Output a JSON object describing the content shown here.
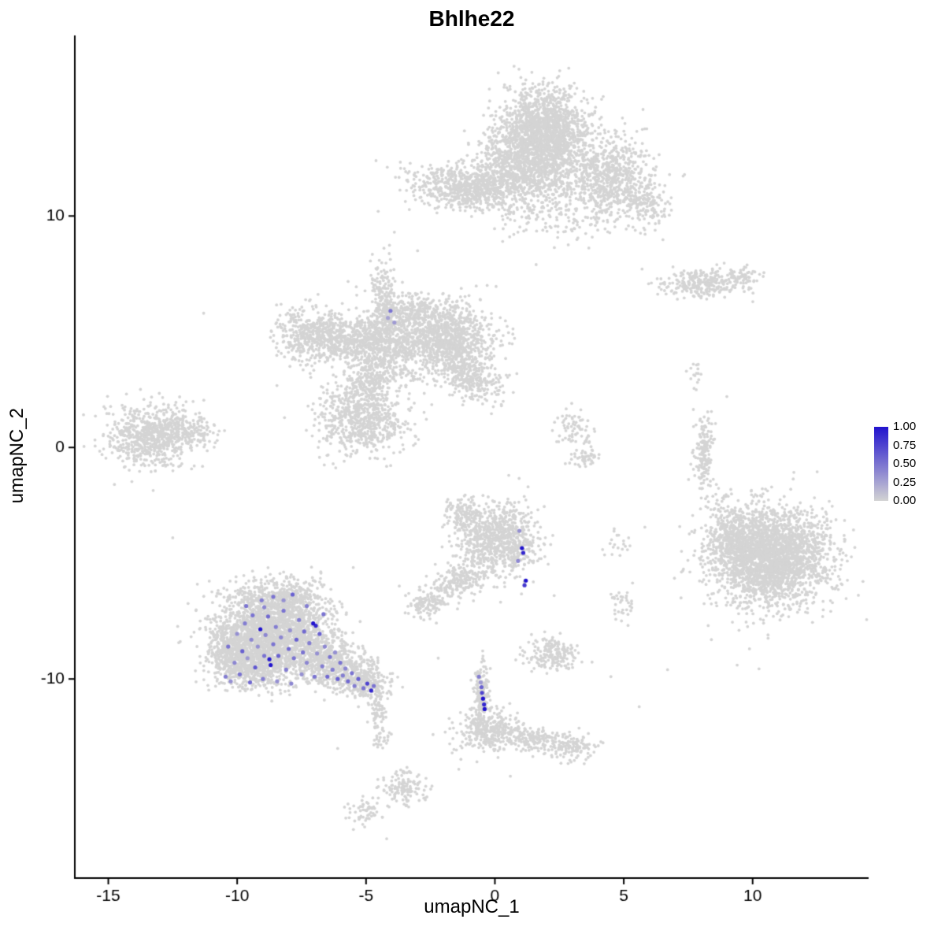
{
  "chart_data": {
    "type": "scatter",
    "title": "Bhlhe22",
    "xlabel": "umapNC_1",
    "ylabel": "umapNC_2",
    "xlim": [
      -16.3,
      14.5
    ],
    "ylim": [
      -18.6,
      17.8
    ],
    "x_ticks": [
      -15,
      -10,
      -5,
      0,
      5,
      10
    ],
    "y_ticks": [
      10,
      0,
      -10
    ],
    "grid": false,
    "legend": {
      "position": "right",
      "labels": [
        "1.00",
        "0.75",
        "0.50",
        "0.25",
        "0.00"
      ],
      "scale_low": "#D3D3D3",
      "scale_high": "#2113CE"
    },
    "colors": {
      "background_points": "#D4D4D4",
      "axis": "#000000",
      "text": "#000000"
    },
    "background_clusters_format": "[center_x, center_y, sd_x, sd_y, rotation_deg, n_points]",
    "background_clusters": [
      [
        1.9,
        13.5,
        0.85,
        1.0,
        0,
        1800
      ],
      [
        1.3,
        11.6,
        1.1,
        0.6,
        0,
        500
      ],
      [
        0.2,
        12.4,
        0.6,
        0.8,
        0,
        260
      ],
      [
        -1.2,
        11.2,
        1.05,
        0.45,
        -8,
        650
      ],
      [
        4.6,
        11.6,
        0.8,
        0.9,
        0,
        700
      ],
      [
        5.9,
        10.4,
        0.4,
        0.4,
        0,
        110
      ],
      [
        2.2,
        9.9,
        1.2,
        0.5,
        0,
        120
      ],
      [
        8.2,
        7.1,
        0.85,
        0.32,
        4,
        280
      ],
      [
        9.6,
        7.5,
        0.3,
        0.2,
        0,
        40
      ],
      [
        -7.0,
        4.9,
        0.75,
        0.6,
        10,
        480
      ],
      [
        -5.5,
        4.5,
        0.7,
        0.5,
        0,
        310
      ],
      [
        -4.2,
        4.6,
        0.7,
        0.85,
        0,
        580
      ],
      [
        -4.3,
        6.4,
        0.25,
        0.85,
        0,
        190
      ],
      [
        -3.3,
        5.9,
        0.5,
        0.4,
        0,
        150
      ],
      [
        -1.9,
        4.7,
        0.95,
        0.8,
        0,
        1100
      ],
      [
        -0.9,
        2.9,
        0.6,
        0.38,
        -35,
        250
      ],
      [
        -5.2,
        1.2,
        0.85,
        0.7,
        0,
        680
      ],
      [
        -4.8,
        2.9,
        0.5,
        0.5,
        0,
        210
      ],
      [
        -13.3,
        0.55,
        0.85,
        0.65,
        0,
        750
      ],
      [
        -11.8,
        0.7,
        0.45,
        0.3,
        0,
        90
      ],
      [
        3.1,
        0.9,
        0.35,
        0.55,
        0,
        70
      ],
      [
        3.45,
        -0.4,
        0.3,
        0.25,
        0,
        50
      ],
      [
        8.1,
        -0.2,
        0.2,
        0.8,
        0,
        160
      ],
      [
        7.8,
        3.2,
        0.15,
        0.3,
        0,
        15
      ],
      [
        10.7,
        -4.7,
        1.15,
        1.05,
        0,
        2600
      ],
      [
        9.3,
        -3.9,
        0.5,
        0.6,
        0,
        280
      ],
      [
        8.8,
        -2.5,
        0.25,
        0.4,
        0,
        30
      ],
      [
        0.2,
        -4.0,
        0.78,
        0.8,
        0,
        820
      ],
      [
        -1.5,
        -5.8,
        0.6,
        0.35,
        25,
        200
      ],
      [
        -2.7,
        -6.8,
        0.35,
        0.3,
        0,
        110
      ],
      [
        -1.2,
        -2.9,
        0.4,
        0.4,
        0,
        130
      ],
      [
        -8.6,
        -8.0,
        1.1,
        0.9,
        0,
        2200
      ],
      [
        -9.4,
        -9.3,
        0.7,
        0.55,
        0,
        560
      ],
      [
        -6.2,
        -9.4,
        0.85,
        0.5,
        -18,
        600
      ],
      [
        -5.0,
        -10.2,
        0.45,
        0.3,
        -15,
        190
      ],
      [
        -8.3,
        -6.5,
        0.9,
        0.4,
        0,
        320
      ],
      [
        -10.3,
        -8.7,
        0.4,
        0.65,
        0,
        220
      ],
      [
        -4.55,
        -11.5,
        0.15,
        0.55,
        0,
        70
      ],
      [
        -4.4,
        -12.6,
        0.15,
        0.3,
        0,
        25
      ],
      [
        -3.6,
        -14.7,
        0.45,
        0.4,
        0,
        130
      ],
      [
        -5.0,
        -15.7,
        0.35,
        0.3,
        0,
        60
      ],
      [
        -0.5,
        -10.6,
        0.16,
        0.75,
        0,
        160
      ],
      [
        -0.3,
        -12.2,
        0.55,
        0.45,
        0,
        300
      ],
      [
        1.4,
        -12.6,
        0.9,
        0.3,
        -10,
        240
      ],
      [
        3.0,
        -12.95,
        0.4,
        0.28,
        0,
        90
      ],
      [
        2.2,
        -8.9,
        0.45,
        0.35,
        0,
        190
      ],
      [
        5.0,
        -6.7,
        0.25,
        0.5,
        0,
        35
      ],
      [
        4.7,
        -4.1,
        0.3,
        0.3,
        0,
        20
      ]
    ],
    "background_singles": [
      [
        -11.3,
        5.8
      ],
      [
        -3.9,
        9.3
      ],
      [
        -3.0,
        8.5
      ],
      [
        0.3,
        8.9
      ],
      [
        1.6,
        7.9
      ],
      [
        -0.3,
        7.0
      ],
      [
        7.7,
        3.6
      ],
      [
        8.4,
        -8.3
      ],
      [
        4.5,
        -9.9
      ],
      [
        5.6,
        -11.2
      ],
      [
        6.7,
        -9.6
      ],
      [
        2.3,
        -6.4
      ],
      [
        -2.2,
        -9.1
      ],
      [
        -1.4,
        -13.9
      ],
      [
        0.6,
        -14.2
      ],
      [
        -6.1,
        -13.0
      ],
      [
        -2.4,
        -12.4
      ],
      [
        -12.5,
        -3.9
      ],
      [
        9.0,
        2.2
      ],
      [
        9.4,
        -9.4
      ],
      [
        -4.2,
        -16.9
      ]
    ],
    "expression_points_format": "[x, y, expression_0_to_1]",
    "expression_points": [
      [
        -10.35,
        -8.6,
        0.5
      ],
      [
        -10.1,
        -9.3,
        0.4
      ],
      [
        -10.0,
        -8.05,
        0.35
      ],
      [
        -9.9,
        -9.8,
        0.5
      ],
      [
        -9.8,
        -8.8,
        0.6
      ],
      [
        -9.7,
        -7.6,
        0.45
      ],
      [
        -9.6,
        -9.1,
        0.3
      ],
      [
        -9.5,
        -10.15,
        0.55
      ],
      [
        -9.45,
        -8.3,
        0.4
      ],
      [
        -9.4,
        -7.25,
        0.5
      ],
      [
        -9.3,
        -9.5,
        0.65
      ],
      [
        -9.2,
        -8.6,
        0.35
      ],
      [
        -9.1,
        -7.85,
        1.0
      ],
      [
        -9.0,
        -10.0,
        0.45
      ],
      [
        -8.95,
        -9.0,
        0.5
      ],
      [
        -8.9,
        -8.1,
        0.4
      ],
      [
        -8.8,
        -7.3,
        0.55
      ],
      [
        -8.7,
        -9.4,
        1.0
      ],
      [
        -8.6,
        -8.5,
        0.5
      ],
      [
        -8.5,
        -7.75,
        0.45
      ],
      [
        -8.45,
        -10.1,
        0.35
      ],
      [
        -8.4,
        -9.0,
        0.6
      ],
      [
        -8.3,
        -8.2,
        0.4
      ],
      [
        -8.2,
        -7.05,
        0.5
      ],
      [
        -8.1,
        -9.6,
        0.45
      ],
      [
        -8.0,
        -8.7,
        0.55
      ],
      [
        -7.95,
        -7.9,
        0.35
      ],
      [
        -7.9,
        -10.2,
        0.4
      ],
      [
        -7.8,
        -9.1,
        0.5
      ],
      [
        -7.7,
        -8.3,
        0.6
      ],
      [
        -7.6,
        -7.45,
        0.45
      ],
      [
        -7.5,
        -9.8,
        0.35
      ],
      [
        -7.45,
        -8.85,
        0.5
      ],
      [
        -7.4,
        -7.95,
        0.55
      ],
      [
        -7.3,
        -9.3,
        0.4
      ],
      [
        -7.2,
        -8.45,
        0.45
      ],
      [
        -7.05,
        -7.6,
        1.0
      ],
      [
        -7.0,
        -9.9,
        0.5
      ],
      [
        -6.9,
        -8.9,
        0.35
      ],
      [
        -6.8,
        -8.05,
        0.6
      ],
      [
        -6.7,
        -9.45,
        0.45
      ],
      [
        -6.6,
        -8.6,
        0.4
      ],
      [
        -6.5,
        -9.9,
        0.55
      ],
      [
        -6.4,
        -9.05,
        0.5
      ],
      [
        -6.3,
        -9.6,
        0.45
      ],
      [
        -6.2,
        -8.85,
        0.35
      ],
      [
        -6.1,
        -10.0,
        0.6
      ],
      [
        -6.0,
        -9.3,
        0.5
      ],
      [
        -5.9,
        -9.85,
        0.45
      ],
      [
        -5.8,
        -9.55,
        0.4
      ],
      [
        -5.7,
        -10.1,
        0.55
      ],
      [
        -5.55,
        -9.75,
        0.5
      ],
      [
        -5.45,
        -10.3,
        0.45
      ],
      [
        -5.3,
        -10.0,
        0.6
      ],
      [
        -5.1,
        -10.4,
        0.5
      ],
      [
        -4.95,
        -10.2,
        0.75
      ],
      [
        -4.8,
        -10.5,
        0.9
      ],
      [
        -4.7,
        -10.3,
        0.5
      ],
      [
        -9.05,
        -6.6,
        0.45
      ],
      [
        -8.6,
        -6.45,
        0.5
      ],
      [
        -8.2,
        -6.6,
        0.35
      ],
      [
        -7.85,
        -6.35,
        0.6
      ],
      [
        -8.95,
        -6.9,
        0.4
      ],
      [
        -9.65,
        -6.85,
        0.5
      ],
      [
        -7.3,
        -6.85,
        0.45
      ],
      [
        -6.65,
        -7.2,
        0.5
      ],
      [
        -10.45,
        -9.9,
        0.45
      ],
      [
        -10.25,
        -10.1,
        0.35
      ],
      [
        -8.75,
        -9.15,
        0.95
      ],
      [
        -6.95,
        -7.7,
        0.9
      ],
      [
        1.05,
        -4.35,
        1.0
      ],
      [
        1.1,
        -4.55,
        0.9
      ],
      [
        0.9,
        -4.9,
        0.4
      ],
      [
        0.95,
        -3.6,
        0.35
      ],
      [
        1.2,
        -5.75,
        1.0
      ],
      [
        1.15,
        -5.95,
        0.8
      ],
      [
        -0.62,
        -9.9,
        0.45
      ],
      [
        -0.55,
        -10.15,
        0.3
      ],
      [
        -0.52,
        -10.35,
        0.6
      ],
      [
        -0.5,
        -10.6,
        0.75
      ],
      [
        -0.46,
        -10.85,
        1.0
      ],
      [
        -0.42,
        -11.1,
        0.9
      ],
      [
        -0.4,
        -11.3,
        1.0
      ],
      [
        -4.05,
        5.9,
        0.5
      ],
      [
        -3.9,
        5.4,
        0.3
      ],
      [
        -4.15,
        5.6,
        0.25
      ]
    ]
  }
}
